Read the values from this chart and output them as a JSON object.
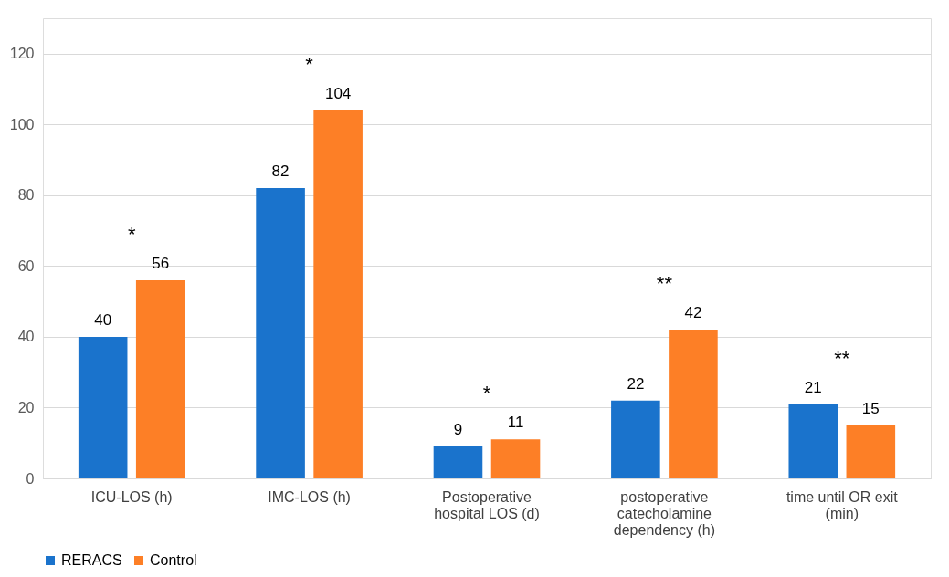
{
  "chart_data": {
    "type": "bar",
    "categories": [
      "ICU-LOS (h)",
      "IMC-LOS (h)",
      "Postoperative hospital LOS (d)",
      "postoperative catecholamine dependency (h)",
      "time until OR exit (min)"
    ],
    "series": [
      {
        "name": "RERACS",
        "color": "#1a73cc",
        "values": [
          40,
          82,
          9,
          22,
          21
        ]
      },
      {
        "name": "Control",
        "color": "#fd7f26",
        "values": [
          56,
          104,
          11,
          42,
          15
        ]
      }
    ],
    "ylim": [
      0,
      130
    ],
    "yticks": [
      0,
      20,
      40,
      60,
      80,
      100,
      120
    ],
    "grid": "y",
    "legend": "bottom",
    "data_labels": true,
    "annotations": [
      "*",
      "*",
      "*",
      "**",
      "**"
    ]
  }
}
